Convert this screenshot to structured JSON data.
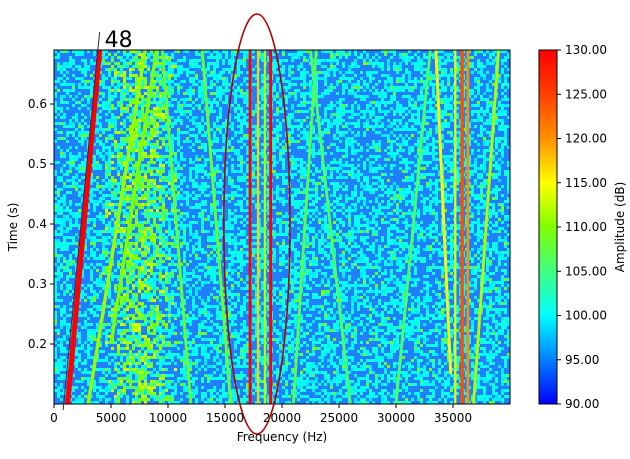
{
  "chart_data": {
    "type": "heatmap",
    "xlabel": "Frequency (Hz)",
    "ylabel": "Time (s)",
    "colorbar_label": "Amplitude (dB)",
    "xlim": [
      0,
      40000
    ],
    "ylim": [
      0.1,
      0.69
    ],
    "clim": [
      90,
      130
    ],
    "colormap": "jet",
    "x_ticks": [
      0,
      5000,
      10000,
      15000,
      20000,
      25000,
      30000,
      35000
    ],
    "x_tick_labels": [
      "0",
      "5000",
      "10000",
      "15000",
      "20000",
      "25000",
      "30000",
      "35000"
    ],
    "y_ticks": [
      0.2,
      0.3,
      0.4,
      0.5,
      0.6
    ],
    "y_tick_labels": [
      "0.2",
      "0.3",
      "0.4",
      "0.5",
      "0.6"
    ],
    "colorbar_ticks": [
      90,
      95,
      100,
      105,
      110,
      115,
      120,
      125,
      130
    ],
    "colorbar_tick_labels": [
      "90.00",
      "95.00",
      "100.00",
      "105.00",
      "110.00",
      "115.00",
      "120.00",
      "125.00",
      "130.00"
    ],
    "background_level_db": 99,
    "features": [
      {
        "kind": "sweep",
        "f_start": 1200,
        "f_end": 4000,
        "t_start": 0.1,
        "t_end": 0.69,
        "db": 130,
        "width_hz": 450
      },
      {
        "kind": "sweep",
        "f_start": 3000,
        "f_end": 8000,
        "t_start": 0.1,
        "t_end": 0.69,
        "db": 111,
        "width_hz": 300
      },
      {
        "kind": "sweep",
        "f_start": 5000,
        "f_end": 9000,
        "t_start": 0.2,
        "t_end": 0.69,
        "db": 110,
        "width_hz": 300
      },
      {
        "kind": "sweep",
        "f_start": 12000,
        "f_end": 9500,
        "t_start": 0.1,
        "t_end": 0.69,
        "db": 108,
        "width_hz": 250
      },
      {
        "kind": "sweep",
        "f_start": 15500,
        "f_end": 13000,
        "t_start": 0.1,
        "t_end": 0.69,
        "db": 108,
        "width_hz": 250
      },
      {
        "kind": "sweep",
        "f_start": 21000,
        "f_end": 23000,
        "t_start": 0.1,
        "t_end": 0.69,
        "db": 107,
        "width_hz": 250
      },
      {
        "kind": "sweep",
        "f_start": 26000,
        "f_end": 22500,
        "t_start": 0.1,
        "t_end": 0.69,
        "db": 106,
        "width_hz": 250
      },
      {
        "kind": "sweep",
        "f_start": 30000,
        "f_end": 33000,
        "t_start": 0.1,
        "t_end": 0.69,
        "db": 106,
        "width_hz": 250
      },
      {
        "kind": "sweep",
        "f_start": 36800,
        "f_end": 39000,
        "t_start": 0.1,
        "t_end": 0.69,
        "db": 112,
        "width_hz": 250
      },
      {
        "kind": "sweep",
        "f_start": 33500,
        "f_end": 34800,
        "t_start": 0.69,
        "t_end": 0.15,
        "db": 115,
        "width_hz": 250
      },
      {
        "kind": "cloud",
        "f_center": 7500,
        "f_width": 3500,
        "t_start": 0.1,
        "t_end": 0.69,
        "db": 110
      },
      {
        "kind": "band",
        "f_center": 17200,
        "t_start": 0.1,
        "t_end": 0.69,
        "db": 130,
        "width_hz": 250
      },
      {
        "kind": "band",
        "f_center": 17900,
        "t_start": 0.1,
        "t_end": 0.69,
        "db": 117,
        "width_hz": 200
      },
      {
        "kind": "band",
        "f_center": 18500,
        "t_start": 0.1,
        "t_end": 0.69,
        "db": 112,
        "width_hz": 200
      },
      {
        "kind": "band",
        "f_center": 19000,
        "t_start": 0.1,
        "t_end": 0.69,
        "db": 130,
        "width_hz": 250
      },
      {
        "kind": "band",
        "f_center": 35800,
        "t_start": 0.1,
        "t_end": 0.69,
        "db": 124,
        "width_hz": 300
      },
      {
        "kind": "band",
        "f_center": 36300,
        "t_start": 0.1,
        "t_end": 0.69,
        "db": 120,
        "width_hz": 250
      },
      {
        "kind": "band",
        "f_center": 35200,
        "t_start": 0.1,
        "t_end": 0.69,
        "db": 114,
        "width_hz": 200
      }
    ],
    "annotations": [
      {
        "text": "48"
      }
    ],
    "highlight_ellipse": {
      "f_center": 17800,
      "t_center": 0.4,
      "f_half_width": 2900,
      "t_half_height": 0.35,
      "color": "#b30000"
    },
    "annotation_line": {
      "f_start": 800,
      "t_start": 0.09,
      "f_end": 4000,
      "t_end": 0.72,
      "color": "#2e2a5a"
    }
  }
}
